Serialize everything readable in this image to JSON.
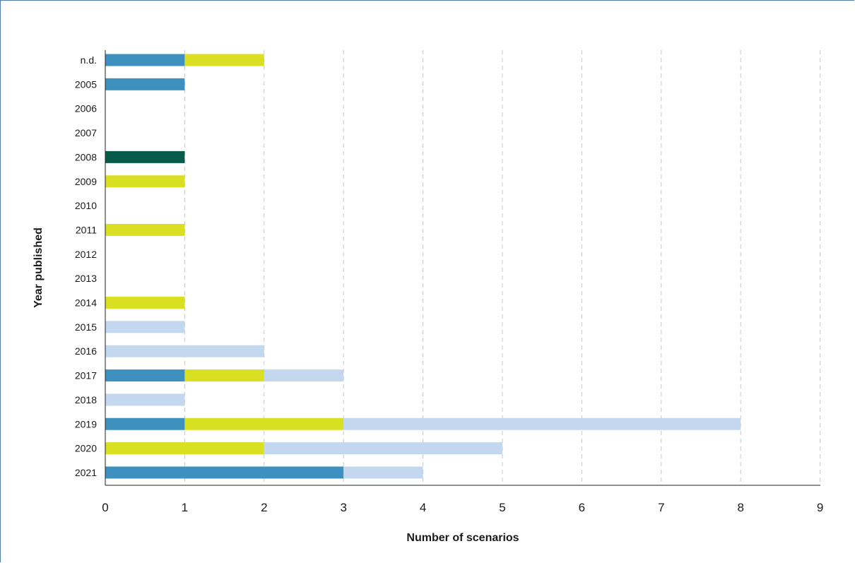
{
  "chart_data": {
    "type": "bar",
    "orientation": "horizontal",
    "stacked": true,
    "title": "",
    "xlabel": "Number of scenarios",
    "ylabel": "Year published",
    "xlim": [
      0,
      9
    ],
    "xticks": [
      "0",
      "1",
      "2",
      "3",
      "4",
      "5",
      "6",
      "7",
      "8",
      "9"
    ],
    "grid": "vertical dashed",
    "categories": [
      "n.d.",
      "2005",
      "2006",
      "2007",
      "2008",
      "2009",
      "2010",
      "2011",
      "2012",
      "2013",
      "2014",
      "2015",
      "2016",
      "2017",
      "2018",
      "2019",
      "2020",
      "2021"
    ],
    "series": [
      {
        "color": "#3e90bf",
        "values": [
          1,
          1,
          0,
          0,
          0,
          0,
          0,
          0,
          0,
          0,
          0,
          0,
          0,
          1,
          0,
          1,
          0,
          3
        ]
      },
      {
        "color": "#085a4a",
        "values": [
          0,
          0,
          0,
          0,
          1,
          0,
          0,
          0,
          0,
          0,
          0,
          0,
          0,
          0,
          0,
          0,
          0,
          0
        ]
      },
      {
        "color": "#d9e021",
        "values": [
          1,
          0,
          0,
          0,
          0,
          1,
          0,
          1,
          0,
          0,
          1,
          0,
          0,
          1,
          0,
          2,
          2,
          0
        ]
      },
      {
        "color": "#c3d8ef",
        "values": [
          0,
          0,
          0,
          0,
          0,
          0,
          0,
          0,
          0,
          0,
          0,
          1,
          2,
          1,
          1,
          5,
          3,
          1
        ]
      }
    ]
  }
}
